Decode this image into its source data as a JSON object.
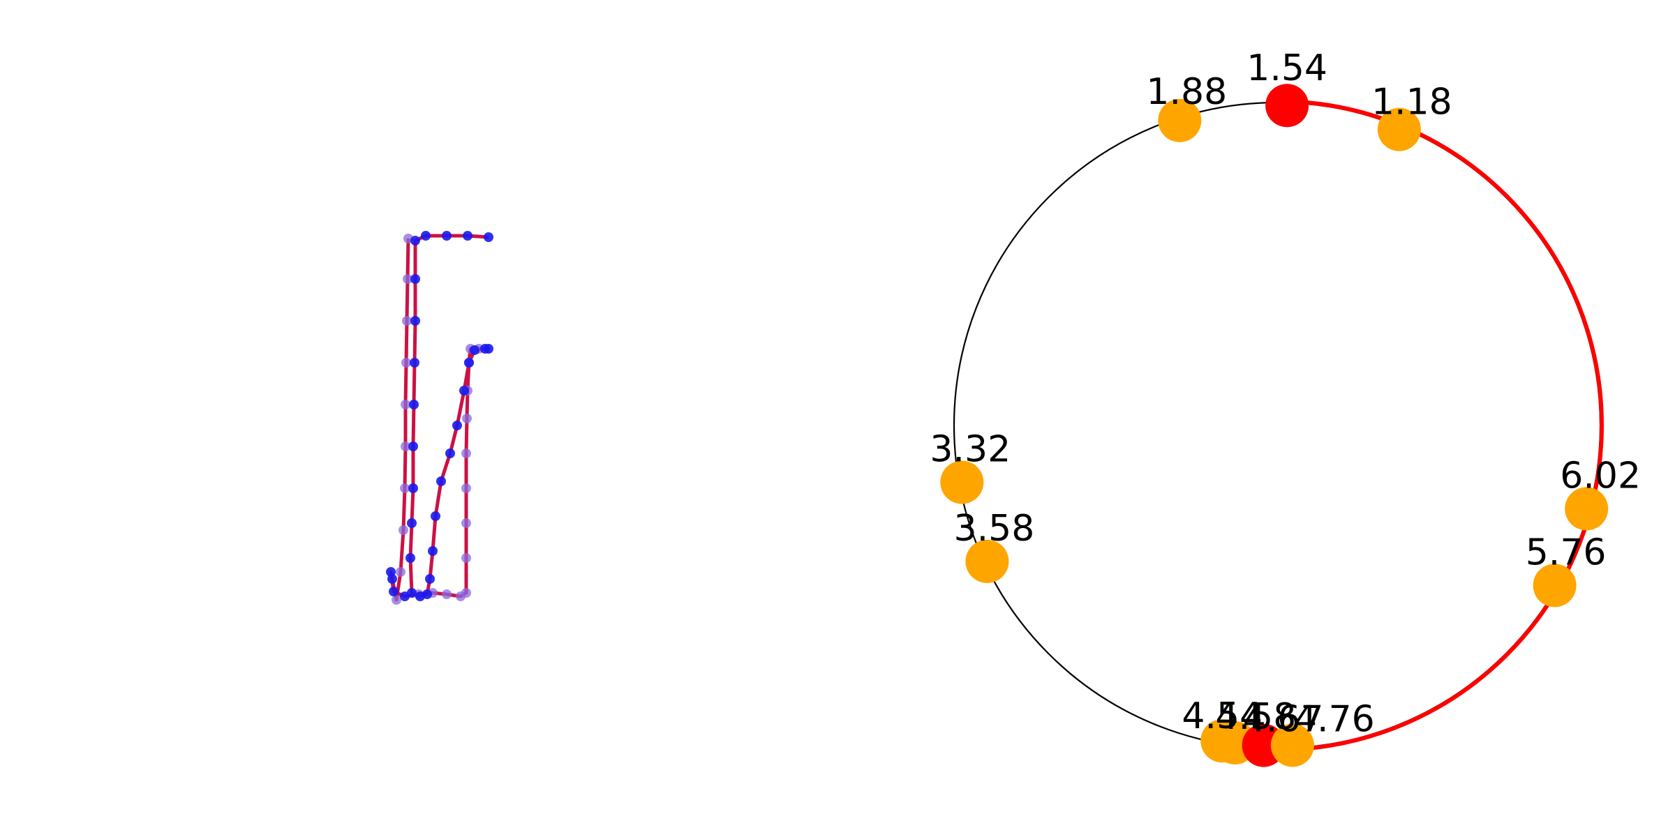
{
  "colors": {
    "path_line": "#cc1144",
    "point": "#1a1aee",
    "point_faded": "#8a6ae0",
    "circle": "#000000",
    "arc": "#ff0000",
    "marker_orange": "#ffa500",
    "marker_red": "#ff0000"
  },
  "chart_data": [
    {
      "type": "scatter",
      "description_role": "trajectory",
      "series": [
        {
          "name": "",
          "points": [
            [
              585,
              342
            ],
            [
              584,
              400
            ],
            [
              583,
              460
            ],
            [
              582,
              520
            ],
            [
              581,
              580
            ],
            [
              581,
              640
            ],
            [
              580,
              700
            ],
            [
              578,
              760
            ],
            [
              574,
              820
            ],
            [
              568,
              860
            ],
            [
              562,
              830
            ],
            [
              560,
              820
            ],
            [
              564,
              848
            ],
            [
              580,
              855
            ],
            [
              600,
              852
            ],
            [
              620,
              850
            ],
            [
              640,
              852
            ],
            [
              660,
              855
            ],
            [
              668,
              850
            ],
            [
              668,
              800
            ],
            [
              668,
              750
            ],
            [
              668,
              700
            ],
            [
              668,
              650
            ],
            [
              669,
              600
            ],
            [
              670,
              560
            ],
            [
              672,
              520
            ],
            [
              674,
              500
            ],
            [
              686,
              500
            ],
            [
              700,
              500
            ],
            [
              695,
              500
            ],
            [
              680,
              502
            ],
            [
              672,
              520
            ],
            [
              665,
              560
            ],
            [
              655,
              610
            ],
            [
              645,
              650
            ],
            [
              632,
              690
            ],
            [
              624,
              740
            ],
            [
              620,
              790
            ],
            [
              616,
              830
            ],
            [
              612,
              852
            ],
            [
              602,
              855
            ],
            [
              590,
              850
            ],
            [
              588,
              800
            ],
            [
              590,
              750
            ],
            [
              592,
              700
            ],
            [
              592,
              640
            ],
            [
              593,
              580
            ],
            [
              594,
              520
            ],
            [
              595,
              460
            ],
            [
              595,
              400
            ],
            [
              595,
              345
            ],
            [
              610,
              338
            ],
            [
              640,
              338
            ],
            [
              670,
              338
            ],
            [
              700,
              340
            ]
          ]
        }
      ]
    },
    {
      "type": "scatter",
      "description_role": "circular",
      "radius": 1,
      "red_arc": {
        "from": 1.54,
        "to": 4.67
      },
      "markers": [
        {
          "angle": 1.54,
          "label": "1.54",
          "color": "red"
        },
        {
          "angle": 1.18,
          "label": "1.18",
          "color": "orange"
        },
        {
          "angle": 1.88,
          "label": "1.88",
          "color": "orange"
        },
        {
          "angle": 3.32,
          "label": "3.32",
          "color": "orange"
        },
        {
          "angle": 3.58,
          "label": "3.58",
          "color": "orange"
        },
        {
          "angle": 4.54,
          "label": "4.54",
          "color": "orange"
        },
        {
          "angle": 4.58,
          "label": "4.58",
          "color": "orange"
        },
        {
          "angle": 4.67,
          "label": "4.67",
          "color": "red"
        },
        {
          "angle": 4.76,
          "label": "4.76",
          "color": "orange"
        },
        {
          "angle": 5.76,
          "label": "5.76",
          "color": "orange"
        },
        {
          "angle": 6.02,
          "label": "6.02",
          "color": "orange"
        }
      ]
    }
  ]
}
